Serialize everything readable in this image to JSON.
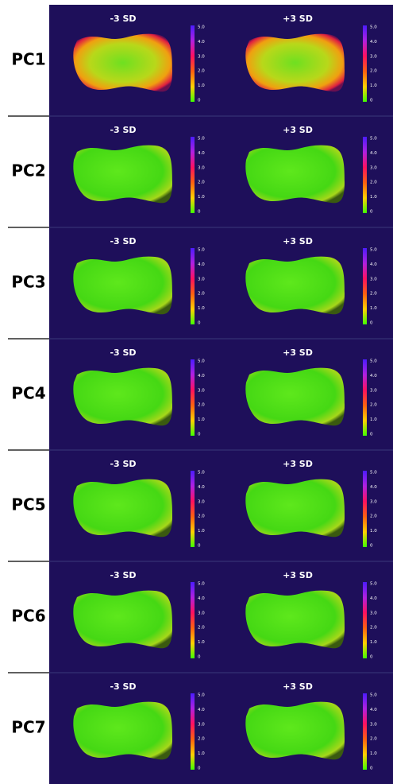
{
  "rows": [
    {
      "label": "PC1"
    },
    {
      "label": "PC2"
    },
    {
      "label": "PC3"
    },
    {
      "label": "PC4"
    },
    {
      "label": "PC5"
    },
    {
      "label": "PC6"
    },
    {
      "label": "PC7"
    }
  ],
  "panel_titles": [
    "-3 SD",
    "+3 SD"
  ],
  "colorbar": {
    "ticks": [
      "5.0",
      "4.0",
      "3.0",
      "2.0",
      "1.0",
      "0"
    ]
  }
}
